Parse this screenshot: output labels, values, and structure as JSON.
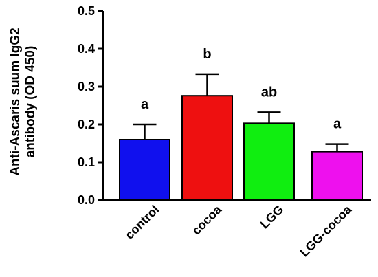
{
  "chart_data": {
    "type": "bar",
    "title": "",
    "xlabel": "",
    "ylabel_lines": [
      "Anti-Ascaris suum IgG2",
      "antibody (OD 450)"
    ],
    "ylim": [
      0,
      0.5
    ],
    "yticks": [
      "0.0",
      "0.1",
      "0.2",
      "0.3",
      "0.4",
      "0.5"
    ],
    "ytick_values": [
      0,
      0.1,
      0.2,
      0.3,
      0.4,
      0.5
    ],
    "grid": false,
    "categories": [
      "control",
      "cocoa",
      "LGG",
      "LGG-cocoa"
    ],
    "values": [
      0.16,
      0.276,
      0.203,
      0.128
    ],
    "errors": [
      0.04,
      0.057,
      0.029,
      0.02
    ],
    "significance": [
      "a",
      "b",
      "ab",
      "a"
    ],
    "colors": [
      "#1010ee",
      "#ee1010",
      "#10ee10",
      "#ee10ee"
    ]
  }
}
